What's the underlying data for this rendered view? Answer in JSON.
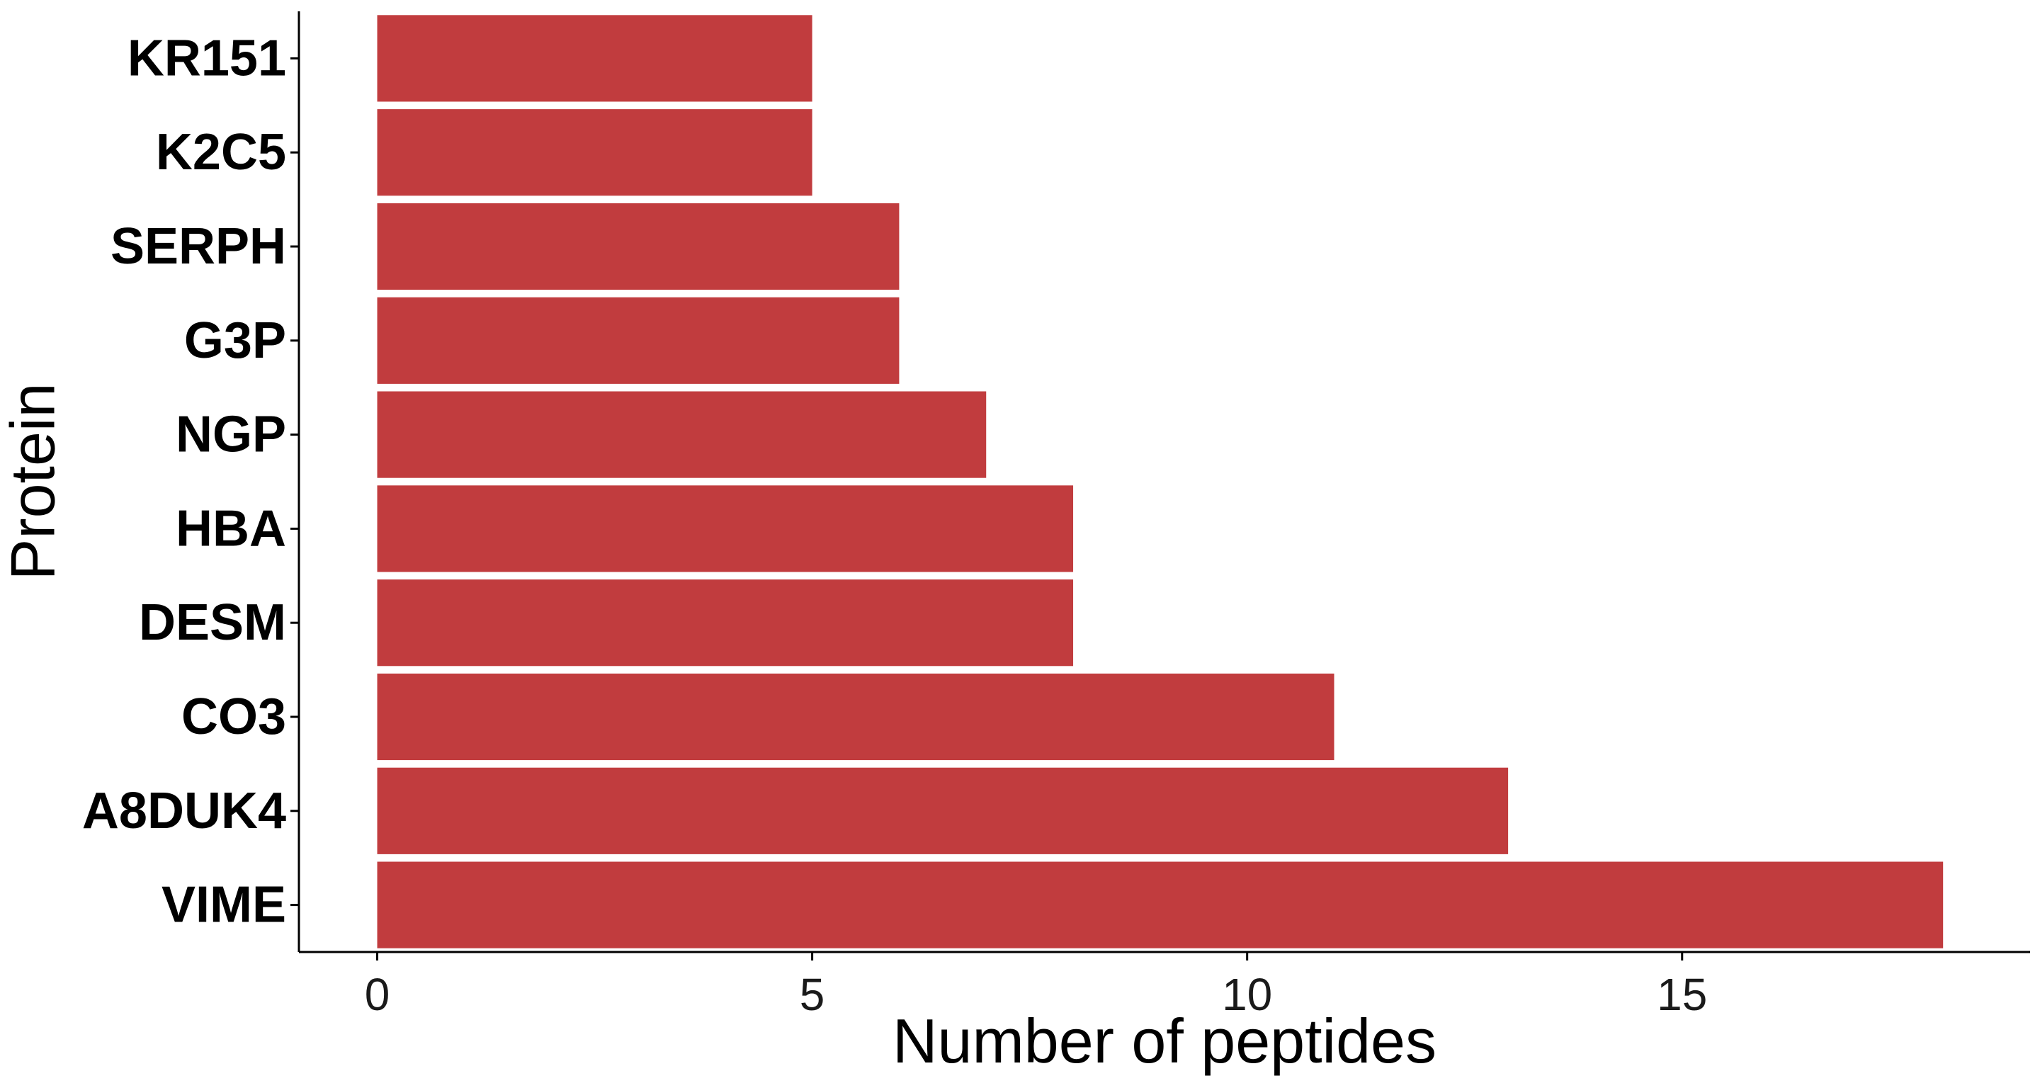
{
  "chart_data": {
    "type": "bar",
    "orientation": "horizontal",
    "title": "",
    "xlabel": "Number of peptides",
    "ylabel": "Protein",
    "categories": [
      "KR151",
      "K2C5",
      "SERPH",
      "G3P",
      "NGP",
      "HBA",
      "DESM",
      "CO3",
      "A8DUK4",
      "VIME"
    ],
    "values": [
      5,
      5,
      6,
      6,
      7,
      8,
      8,
      11,
      13,
      18
    ],
    "xticks": [
      0,
      5,
      10,
      15
    ],
    "xlim": [
      -0.9,
      19.0
    ],
    "grid": false,
    "legend": "none",
    "bar_color": "#C13C3E"
  }
}
